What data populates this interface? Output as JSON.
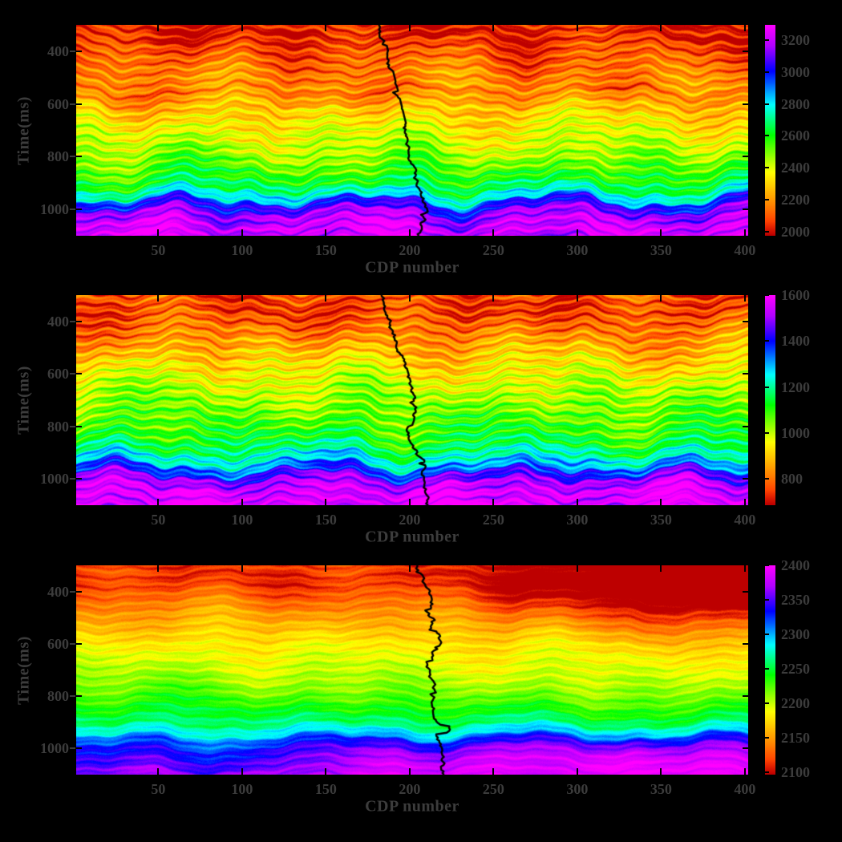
{
  "chart_data": {
    "type": "heatmap",
    "layout": "three stacked seismic time sections, each with overlaid black well-log curve and vertical colorbar on the right; black figure background; no titles",
    "colors": {
      "background": "#000000",
      "tick_label": "#3c3c3c",
      "well_log": "#000000",
      "tick_mark": "#000000"
    },
    "colormap_stops": [
      "#b30000",
      "#ff2a00",
      "#ff8400",
      "#ffff00",
      "#2bff00",
      "#00ffff",
      "#0033ff",
      "#b300ff",
      "#ff00ff"
    ],
    "panels": [
      {
        "xlabel": "CDP number",
        "ylabel": "Time(ms)",
        "x_range": [
          1,
          402
        ],
        "t_range": [
          300,
          1100
        ],
        "x_ticks": [
          50,
          100,
          150,
          200,
          250,
          300,
          350,
          400
        ],
        "y_ticks": [
          400,
          600,
          800,
          1000
        ],
        "colorbar": {
          "min": 1975,
          "max": 3295,
          "ticks": [
            2000,
            2200,
            2400,
            2600,
            2800,
            3000,
            3200
          ]
        },
        "profile": [
          [
            300,
            2030
          ],
          [
            340,
            2010
          ],
          [
            380,
            2070
          ],
          [
            430,
            2110
          ],
          [
            470,
            2150
          ],
          [
            520,
            2185
          ],
          [
            560,
            2155
          ],
          [
            600,
            2260
          ],
          [
            640,
            2300
          ],
          [
            680,
            2350
          ],
          [
            720,
            2390
          ],
          [
            760,
            2430
          ],
          [
            800,
            2480
          ],
          [
            840,
            2540
          ],
          [
            880,
            2600
          ],
          [
            910,
            2660
          ],
          [
            930,
            2720
          ],
          [
            950,
            2800
          ],
          [
            970,
            2950
          ],
          [
            990,
            3060
          ],
          [
            1010,
            3130
          ],
          [
            1040,
            3190
          ],
          [
            1070,
            3230
          ],
          [
            1100,
            3230
          ]
        ],
        "well_log": {
          "cdp_start": 181,
          "cdp_end": 209
        }
      },
      {
        "xlabel": "CDP number",
        "ylabel": "Time(ms)",
        "x_range": [
          1,
          402
        ],
        "t_range": [
          300,
          1100
        ],
        "x_ticks": [
          50,
          100,
          150,
          200,
          250,
          300,
          350,
          400
        ],
        "y_ticks": [
          400,
          600,
          800,
          1000
        ],
        "colorbar": {
          "min": 685,
          "max": 1600,
          "ticks": [
            800,
            1000,
            1200,
            1400,
            1600
          ]
        },
        "profile": [
          [
            300,
            760
          ],
          [
            350,
            742
          ],
          [
            400,
            780
          ],
          [
            450,
            820
          ],
          [
            500,
            868
          ],
          [
            550,
            915
          ],
          [
            600,
            958
          ],
          [
            650,
            1000
          ],
          [
            700,
            1030
          ],
          [
            750,
            1060
          ],
          [
            800,
            1092
          ],
          [
            850,
            1130
          ],
          [
            880,
            1168
          ],
          [
            910,
            1220
          ],
          [
            940,
            1280
          ],
          [
            960,
            1340
          ],
          [
            980,
            1420
          ],
          [
            1000,
            1480
          ],
          [
            1020,
            1530
          ],
          [
            1050,
            1562
          ],
          [
            1100,
            1572
          ]
        ],
        "well_log": {
          "cdp_start": 183,
          "cdp_end": 215
        }
      },
      {
        "xlabel": "CDP number",
        "ylabel": "Time(ms)",
        "x_range": [
          1,
          402
        ],
        "t_range": [
          300,
          1100
        ],
        "x_ticks": [
          50,
          100,
          150,
          200,
          250,
          300,
          350,
          400
        ],
        "y_ticks": [
          400,
          600,
          800,
          1000
        ],
        "colorbar": {
          "min": 2096,
          "max": 2400,
          "ticks": [
            2100,
            2150,
            2200,
            2250,
            2300,
            2350,
            2400
          ]
        },
        "profile": [
          [
            300,
            2116
          ],
          [
            360,
            2112
          ],
          [
            420,
            2130
          ],
          [
            480,
            2150
          ],
          [
            540,
            2165
          ],
          [
            600,
            2180
          ],
          [
            660,
            2191
          ],
          [
            720,
            2202
          ],
          [
            780,
            2216
          ],
          [
            840,
            2236
          ],
          [
            900,
            2262
          ],
          [
            930,
            2288
          ],
          [
            950,
            2312
          ],
          [
            970,
            2342
          ],
          [
            990,
            2362
          ],
          [
            1010,
            2376
          ],
          [
            1040,
            2390
          ],
          [
            1100,
            2396
          ]
        ],
        "well_log": {
          "cdp_start": 205,
          "cdp_end": 228
        }
      }
    ]
  }
}
